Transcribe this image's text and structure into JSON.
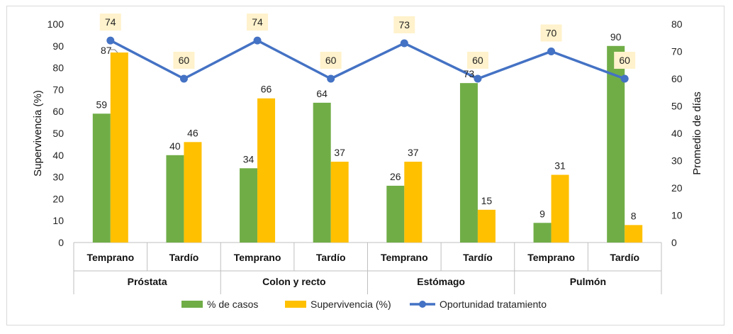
{
  "chart_data": {
    "type": "bar",
    "groups": [
      "Próstata",
      "Colon y recto",
      "Estómago",
      "Pulmón"
    ],
    "subcategories": [
      "Temprano",
      "Tardío"
    ],
    "categories": [
      "Próstata Temprano",
      "Próstata Tardío",
      "Colon y recto Temprano",
      "Colon y recto Tardío",
      "Estómago Temprano",
      "Estómago Tardío",
      "Pulmón Temprano",
      "Pulmón Tardío"
    ],
    "series": [
      {
        "name": "% de casos",
        "type": "bar",
        "axis": "left",
        "color": "#70ad47",
        "values": [
          59,
          40,
          34,
          64,
          26,
          73,
          9,
          90
        ]
      },
      {
        "name": "Supervivencia (%)",
        "type": "bar",
        "axis": "left",
        "color": "#ffc000",
        "values": [
          87,
          46,
          66,
          37,
          37,
          15,
          31,
          8
        ]
      },
      {
        "name": "Oportunidad tratamiento",
        "type": "line",
        "axis": "right",
        "color": "#4472c4",
        "values": [
          74,
          60,
          74,
          60,
          73,
          60,
          70,
          60
        ]
      }
    ],
    "ylabel": "Supervivencia (%)",
    "y2label": "Promedio de días",
    "ylim": [
      0,
      100
    ],
    "y2lim": [
      0,
      80
    ],
    "yticks": [
      0,
      10,
      20,
      30,
      40,
      50,
      60,
      70,
      80,
      90,
      100
    ],
    "y2ticks": [
      0,
      10,
      20,
      30,
      40,
      50,
      60,
      70,
      80
    ],
    "grid": false,
    "legend_position": "bottom"
  }
}
